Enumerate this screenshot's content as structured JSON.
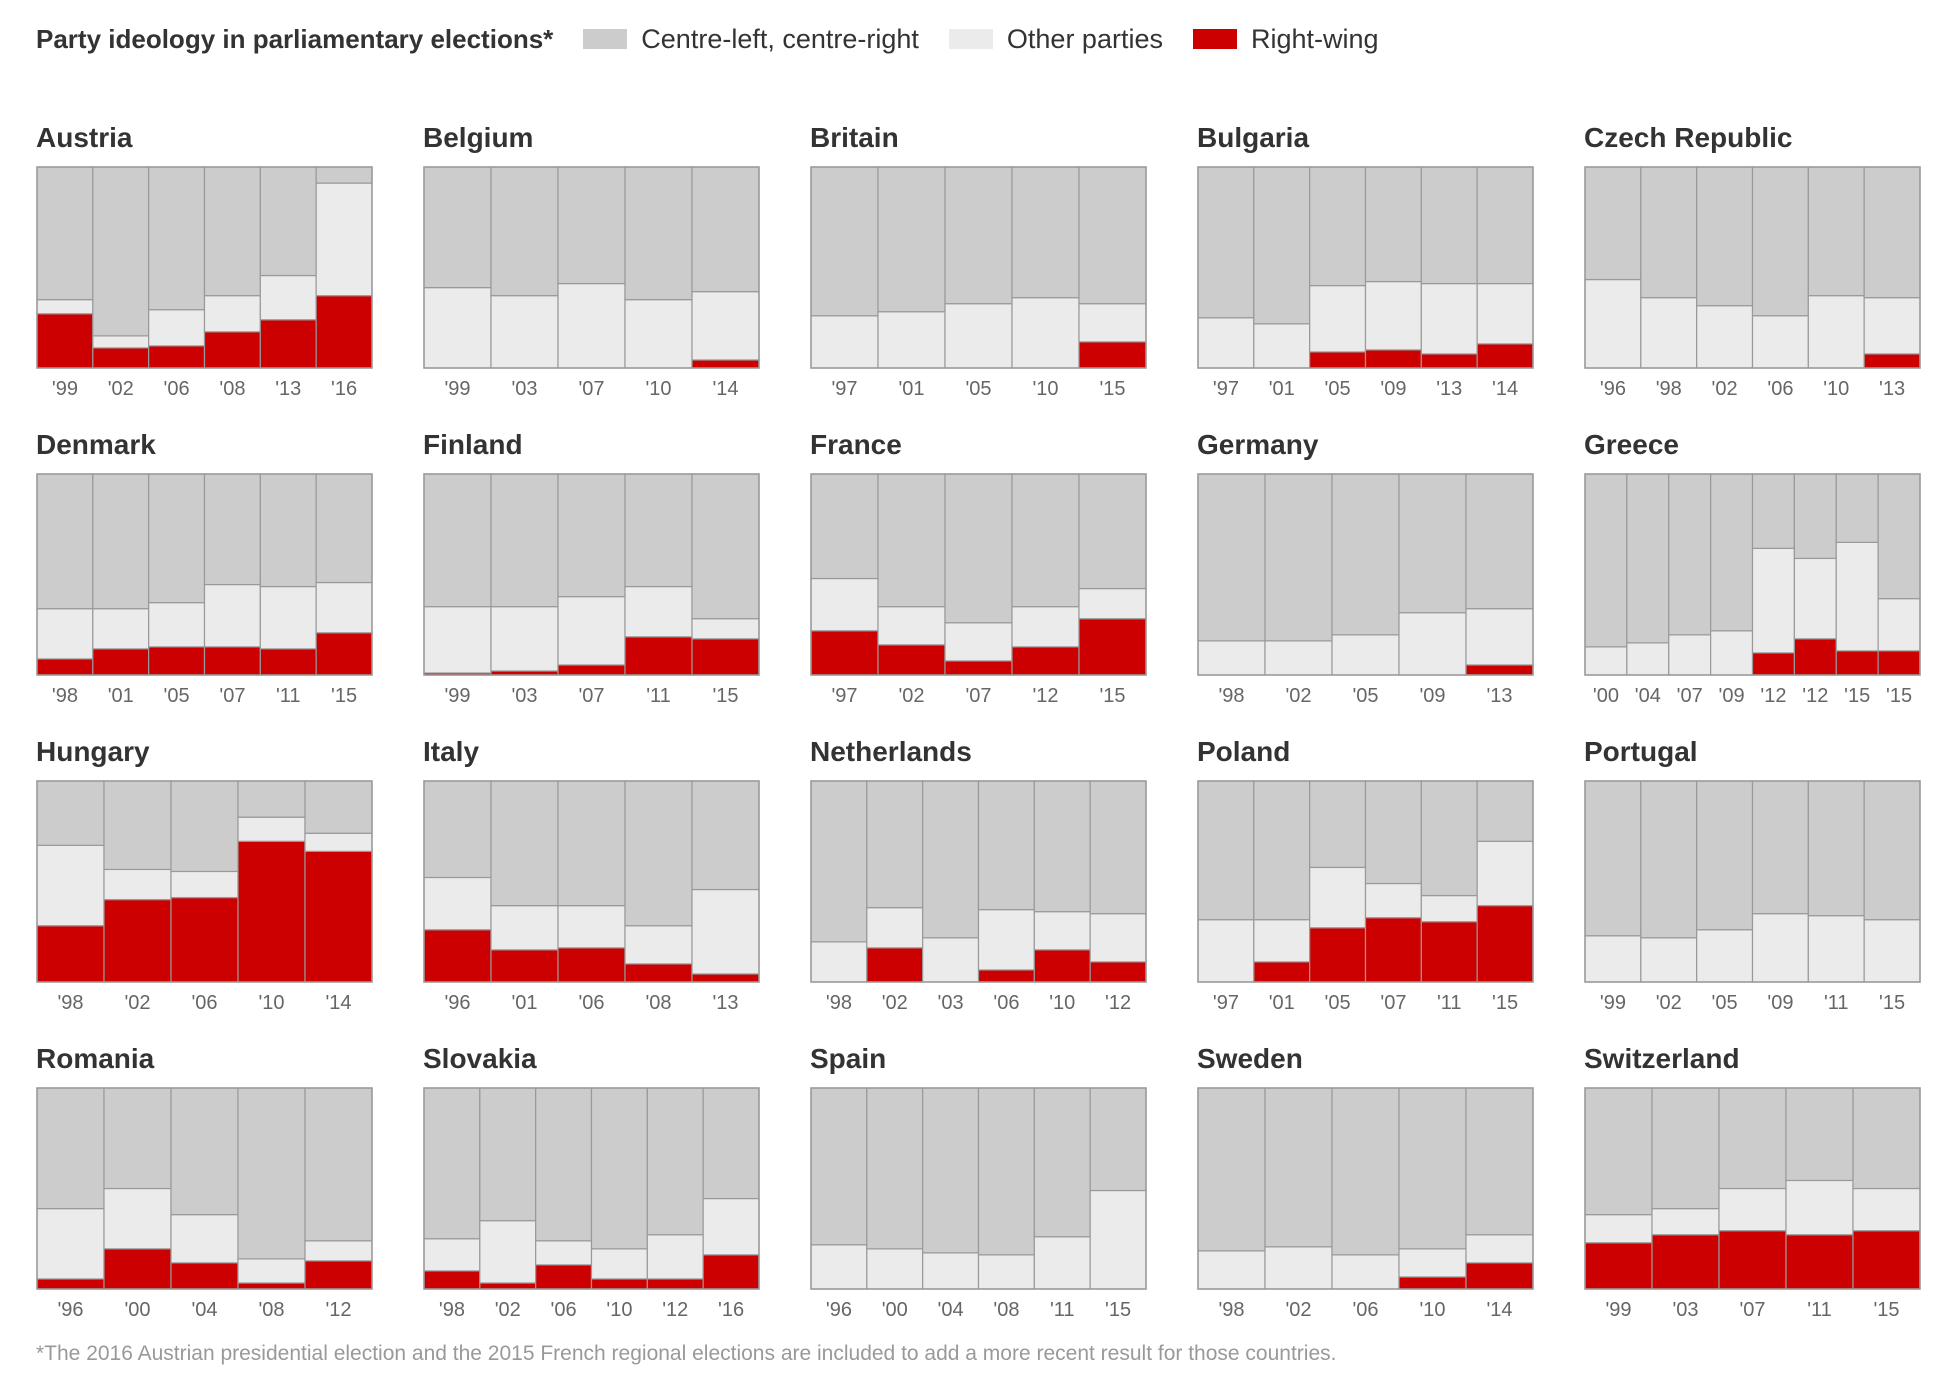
{
  "legend": {
    "title": "Party ideology in parliamentary elections*",
    "items": [
      {
        "label": "Centre-left, centre-right",
        "color": "#cccccc"
      },
      {
        "label": "Other parties",
        "color": "#ebebeb"
      },
      {
        "label": "Right-wing",
        "color": "#cc0000"
      }
    ]
  },
  "footnote": "*The 2016 Austrian presidential election and the 2015 French regional elections are included to add a more recent result for those countries.",
  "colors": {
    "right": "#cc0000",
    "other": "#ebebeb",
    "blank": "#ffffff",
    "centre": "#cccccc"
  },
  "chart_data": [
    {
      "type": "bar",
      "country": "Austria",
      "categories": [
        "'99",
        "'02",
        "'06",
        "'08",
        "'13",
        "'16"
      ],
      "right": [
        27,
        10,
        11,
        18,
        24,
        36
      ],
      "other": [
        7,
        6,
        18,
        18,
        22,
        56
      ],
      "centre": [
        66,
        84,
        71,
        64,
        54,
        8
      ]
    },
    {
      "type": "bar",
      "country": "Belgium",
      "categories": [
        "'99",
        "'03",
        "'07",
        "'10",
        "'14"
      ],
      "right": [
        0,
        0,
        0,
        0,
        4
      ],
      "other": [
        40,
        36,
        42,
        34,
        34
      ],
      "centre": [
        60,
        64,
        58,
        66,
        62
      ]
    },
    {
      "type": "bar",
      "country": "Britain",
      "categories": [
        "'97",
        "'01",
        "'05",
        "'10",
        "'15"
      ],
      "right": [
        0,
        0,
        0,
        0,
        13
      ],
      "other": [
        26,
        28,
        32,
        35,
        19
      ],
      "centre": [
        74,
        72,
        68,
        65,
        68
      ]
    },
    {
      "type": "bar",
      "country": "Bulgaria",
      "categories": [
        "'97",
        "'01",
        "'05",
        "'09",
        "'13",
        "'14"
      ],
      "right": [
        0,
        0,
        8,
        9,
        7,
        12
      ],
      "other": [
        25,
        22,
        33,
        34,
        35,
        30
      ],
      "centre": [
        75,
        78,
        59,
        57,
        58,
        58
      ]
    },
    {
      "type": "bar",
      "country": "Czech Republic",
      "categories": [
        "'96",
        "'98",
        "'02",
        "'06",
        "'10",
        "'13"
      ],
      "right": [
        0,
        0,
        0,
        0,
        0,
        7
      ],
      "other": [
        44,
        35,
        31,
        26,
        36,
        28
      ],
      "centre": [
        56,
        65,
        69,
        74,
        64,
        65
      ]
    },
    {
      "type": "bar",
      "country": "Denmark",
      "categories": [
        "'98",
        "'01",
        "'05",
        "'07",
        "'11",
        "'15"
      ],
      "right": [
        8,
        13,
        14,
        14,
        13,
        21
      ],
      "other": [
        25,
        20,
        22,
        31,
        31,
        25
      ],
      "centre": [
        67,
        67,
        64,
        55,
        56,
        54
      ]
    },
    {
      "type": "bar",
      "country": "Finland",
      "categories": [
        "'99",
        "'03",
        "'07",
        "'11",
        "'15"
      ],
      "right": [
        1,
        2,
        5,
        19,
        18
      ],
      "other": [
        33,
        32,
        34,
        25,
        10
      ],
      "centre": [
        66,
        66,
        61,
        56,
        72
      ]
    },
    {
      "type": "bar",
      "country": "France",
      "categories": [
        "'97",
        "'02",
        "'07",
        "'12",
        "'15"
      ],
      "right": [
        22,
        15,
        7,
        14,
        28
      ],
      "other": [
        26,
        19,
        19,
        20,
        15
      ],
      "centre": [
        52,
        66,
        74,
        66,
        57
      ]
    },
    {
      "type": "bar",
      "country": "Germany",
      "categories": [
        "'98",
        "'02",
        "'05",
        "'09",
        "'13"
      ],
      "right": [
        0,
        0,
        0,
        0,
        5
      ],
      "other": [
        17,
        17,
        20,
        31,
        28
      ],
      "centre": [
        83,
        83,
        80,
        69,
        67
      ]
    },
    {
      "type": "bar",
      "country": "Greece",
      "categories": [
        "'00",
        "'04",
        "'07",
        "'09",
        "'12",
        "'12",
        "'15",
        "'15"
      ],
      "right": [
        0,
        0,
        0,
        0,
        11,
        18,
        12,
        12
      ],
      "other": [
        14,
        16,
        20,
        22,
        52,
        40,
        54,
        26
      ],
      "centre": [
        86,
        84,
        80,
        78,
        37,
        42,
        34,
        62
      ]
    },
    {
      "type": "bar",
      "country": "Hungary",
      "categories": [
        "'98",
        "'02",
        "'06",
        "'10",
        "'14"
      ],
      "right": [
        28,
        41,
        42,
        70,
        65
      ],
      "other": [
        40,
        15,
        13,
        12,
        9
      ],
      "centre": [
        32,
        44,
        45,
        18,
        26
      ]
    },
    {
      "type": "bar",
      "country": "Italy",
      "categories": [
        "'96",
        "'01",
        "'06",
        "'08",
        "'13"
      ],
      "right": [
        26,
        16,
        17,
        9,
        4
      ],
      "other": [
        26,
        22,
        21,
        19,
        42
      ],
      "centre": [
        48,
        62,
        62,
        72,
        54
      ]
    },
    {
      "type": "bar",
      "country": "Netherlands",
      "categories": [
        "'98",
        "'02",
        "'03",
        "'06",
        "'10",
        "'12"
      ],
      "right": [
        0,
        17,
        0,
        6,
        16,
        10
      ],
      "other": [
        20,
        20,
        22,
        30,
        19,
        24
      ],
      "centre": [
        80,
        63,
        78,
        64,
        65,
        66
      ]
    },
    {
      "type": "bar",
      "country": "Poland",
      "categories": [
        "'97",
        "'01",
        "'05",
        "'07",
        "'11",
        "'15"
      ],
      "right": [
        0,
        10,
        27,
        32,
        30,
        38
      ],
      "other": [
        31,
        21,
        30,
        17,
        13,
        32
      ],
      "centre": [
        69,
        69,
        43,
        51,
        57,
        30
      ]
    },
    {
      "type": "bar",
      "country": "Portugal",
      "categories": [
        "'99",
        "'02",
        "'05",
        "'09",
        "'11",
        "'15"
      ],
      "right": [
        0,
        0,
        0,
        0,
        0,
        0
      ],
      "other": [
        23,
        22,
        26,
        34,
        33,
        31
      ],
      "centre": [
        77,
        78,
        74,
        66,
        67,
        69
      ]
    },
    {
      "type": "bar",
      "country": "Romania",
      "categories": [
        "'96",
        "'00",
        "'04",
        "'08",
        "'12"
      ],
      "right": [
        5,
        20,
        13,
        3,
        14
      ],
      "other": [
        35,
        30,
        24,
        12,
        10
      ],
      "centre": [
        60,
        50,
        63,
        85,
        76
      ]
    },
    {
      "type": "bar",
      "country": "Slovakia",
      "categories": [
        "'98",
        "'02",
        "'06",
        "'10",
        "'12",
        "'16"
      ],
      "right": [
        9,
        3,
        12,
        5,
        5,
        17
      ],
      "other": [
        16,
        31,
        12,
        15,
        22,
        28
      ],
      "centre": [
        75,
        66,
        76,
        80,
        73,
        55
      ]
    },
    {
      "type": "bar",
      "country": "Spain",
      "categories": [
        "'96",
        "'00",
        "'04",
        "'08",
        "'11",
        "'15"
      ],
      "right": [
        0,
        0,
        0,
        0,
        0,
        0
      ],
      "other": [
        22,
        20,
        18,
        17,
        26,
        49
      ],
      "centre": [
        78,
        80,
        82,
        83,
        74,
        51
      ]
    },
    {
      "type": "bar",
      "country": "Sweden",
      "categories": [
        "'98",
        "'02",
        "'06",
        "'10",
        "'14"
      ],
      "right": [
        0,
        0,
        0,
        6,
        13
      ],
      "other": [
        19,
        21,
        17,
        14,
        14
      ],
      "centre": [
        81,
        79,
        83,
        80,
        73
      ]
    },
    {
      "type": "bar",
      "country": "Switzerland",
      "categories": [
        "'99",
        "'03",
        "'07",
        "'11",
        "'15"
      ],
      "right": [
        23,
        27,
        29,
        27,
        29
      ],
      "other": [
        14,
        13,
        21,
        27,
        21
      ],
      "centre": [
        63,
        60,
        50,
        46,
        50
      ]
    }
  ]
}
